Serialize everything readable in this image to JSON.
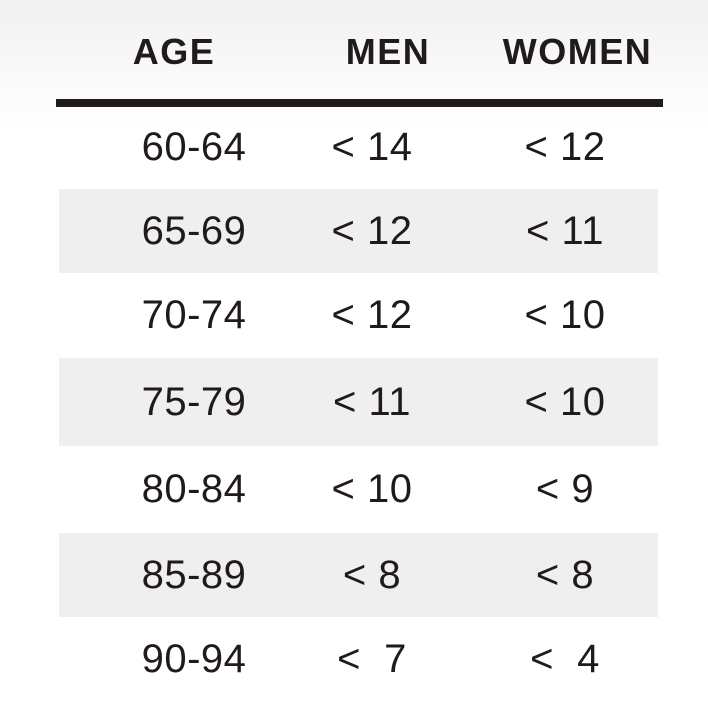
{
  "headers": {
    "age": "AGE",
    "men": "MEN",
    "women": "WOMEN"
  },
  "rows": [
    {
      "age": "60-64",
      "men": "< 14",
      "women": "< 12"
    },
    {
      "age": "65-69",
      "men": "< 12",
      "women": "< 11"
    },
    {
      "age": "70-74",
      "men": "< 12",
      "women": "< 10"
    },
    {
      "age": "75-79",
      "men": "< 11",
      "women": "< 10"
    },
    {
      "age": "80-84",
      "men": "< 10",
      "women": "< 9"
    },
    {
      "age": "85-89",
      "men": "< 8",
      "women": "< 8"
    },
    {
      "age": "90-94",
      "men": "<  7",
      "women": "<  4"
    }
  ],
  "colors": {
    "text": "#211a1a",
    "stripe": "#efeff0",
    "rule": "#211a1a"
  }
}
